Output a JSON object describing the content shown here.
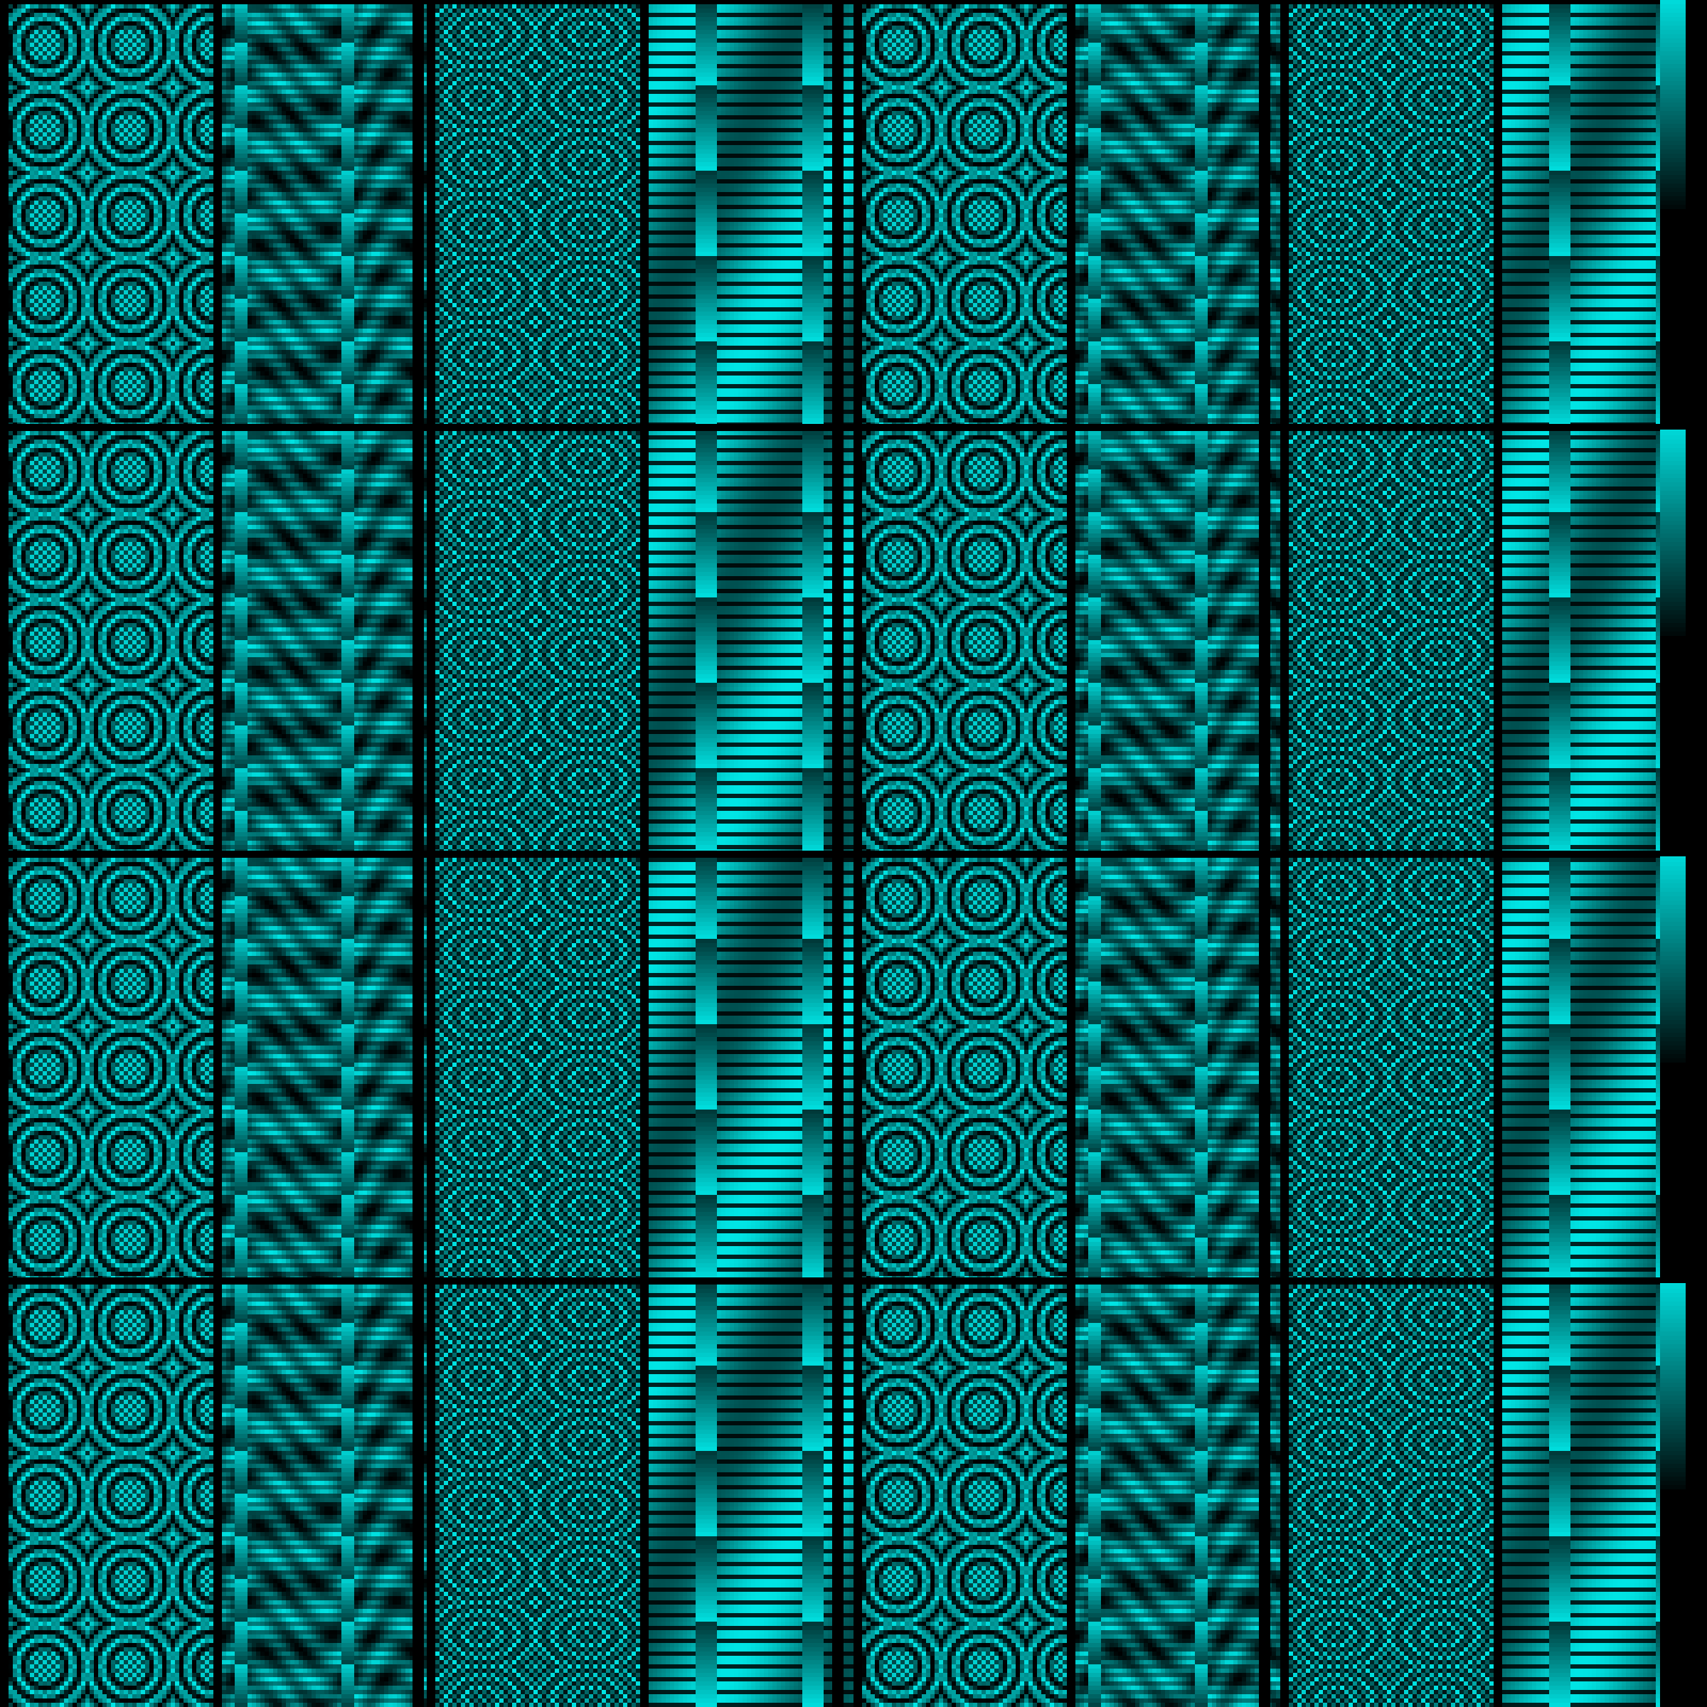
{
  "image": {
    "description_tag": "pixel-art-cyan-moire-pattern",
    "palette": {
      "background": "#000000",
      "accent": "#00e5e5",
      "dark_accent": "#005f64"
    },
    "grid": {
      "block_columns": 8,
      "block_rows": 4,
      "column_kinds": [
        "rings",
        "wave",
        "checker-ripple",
        "stripes",
        "rings",
        "wave",
        "checker-ripple",
        "stripes"
      ]
    }
  }
}
